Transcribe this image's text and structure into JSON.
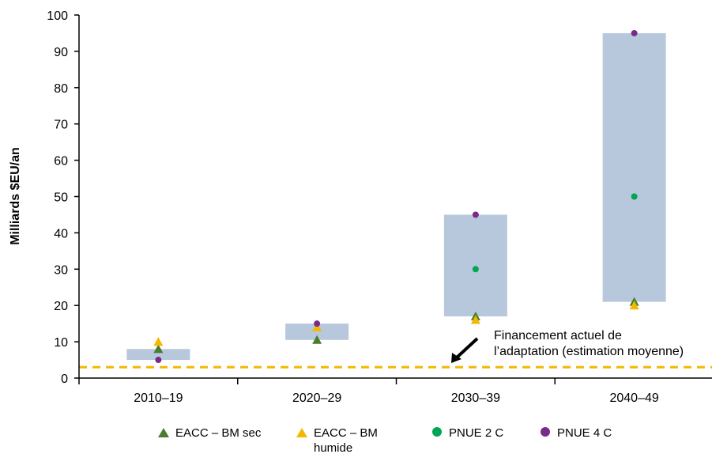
{
  "chart_data": {
    "type": "range-bar-scatter",
    "ylabel": "Milliards $EU/an",
    "ylim": [
      0,
      100
    ],
    "yticks": [
      0,
      10,
      20,
      30,
      40,
      50,
      60,
      70,
      80,
      90,
      100
    ],
    "categories": [
      "2010–19",
      "2020–29",
      "2030–39",
      "2040–49"
    ],
    "ranges": [
      {
        "low": 5,
        "high": 8
      },
      {
        "low": 10.5,
        "high": 15
      },
      {
        "low": 17,
        "high": 45
      },
      {
        "low": 21,
        "high": 95
      }
    ],
    "series": [
      {
        "name": "EACC – BM sec",
        "marker": "triangle",
        "color": "#4a7d2e",
        "values": [
          8,
          10.5,
          17,
          21
        ]
      },
      {
        "name": "EACC – BM humide",
        "marker": "triangle",
        "color": "#f5b800",
        "values": [
          10,
          14,
          16,
          20
        ]
      },
      {
        "name": "PNUE 2 C",
        "marker": "circle",
        "color": "#00a651",
        "values": [
          null,
          null,
          30,
          50
        ]
      },
      {
        "name": "PNUE 4 C",
        "marker": "circle",
        "color": "#7a2a8c",
        "values": [
          5,
          15,
          45,
          95
        ]
      }
    ],
    "reference_line": {
      "value": 3,
      "color": "#f5b800",
      "style": "dashed"
    },
    "annotation": {
      "line1": "Financement actuel de",
      "line2": "l’adaptation (estimation moyenne)"
    },
    "range_color": "#b7c7dc",
    "legend_labels": {
      "s0": "EACC – BM sec",
      "s1a": "EACC – BM",
      "s1b": "humide",
      "s2": "PNUE 2 C",
      "s3": "PNUE 4 C"
    }
  }
}
